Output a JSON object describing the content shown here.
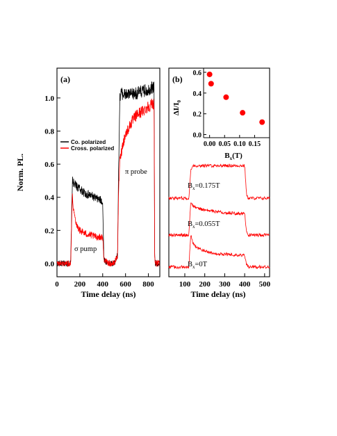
{
  "chart_data": [
    {
      "type": "line",
      "panel_label": "(a)",
      "xlabel": "Time delay (ns)",
      "ylabel": "Norm. PL.",
      "xlim": [
        0,
        900
      ],
      "ylim": [
        -0.08,
        1.18
      ],
      "x_ticks": [
        0,
        200,
        400,
        600,
        800
      ],
      "y_ticks": [
        0.0,
        0.2,
        0.4,
        0.6,
        0.8,
        1.0
      ],
      "y_tick_labels": [
        "0.0",
        "0.2",
        "0.4",
        "0.6",
        "0.8",
        "1.0"
      ],
      "grid": false,
      "legend_position": "middle-left",
      "annotations": [
        {
          "text": "σ  pump",
          "x": 165,
          "y": 0.055
        },
        {
          "text": "π  probe",
          "x": 685,
          "y": 0.555
        }
      ],
      "series": [
        {
          "name": "Co. polarized",
          "color": "#000000",
          "x": [
            0,
            120,
            130,
            135,
            150,
            200,
            250,
            300,
            350,
            390,
            400,
            410,
            430,
            460,
            500,
            530,
            540,
            550,
            560,
            600,
            650,
            700,
            750,
            800,
            850,
            855,
            860,
            900
          ],
          "y": [
            0.0,
            0.0,
            0.35,
            0.5,
            0.48,
            0.45,
            0.42,
            0.41,
            0.39,
            0.38,
            0.37,
            0.03,
            0.01,
            0.0,
            0.0,
            0.05,
            0.6,
            1.0,
            1.03,
            1.02,
            1.02,
            1.03,
            1.04,
            1.05,
            1.07,
            0.05,
            0.0,
            0.0
          ]
        },
        {
          "name": "Cross. polarized",
          "color": "#ff0000",
          "x": [
            0,
            120,
            130,
            135,
            150,
            175,
            200,
            250,
            300,
            350,
            400,
            410,
            430,
            460,
            500,
            530,
            540,
            550,
            575,
            600,
            650,
            700,
            750,
            800,
            850,
            855,
            860,
            900
          ],
          "y": [
            0.0,
            0.0,
            0.3,
            0.4,
            0.3,
            0.23,
            0.2,
            0.18,
            0.17,
            0.16,
            0.16,
            0.03,
            0.01,
            0.0,
            0.0,
            0.05,
            0.45,
            0.62,
            0.72,
            0.78,
            0.85,
            0.9,
            0.92,
            0.95,
            0.97,
            0.05,
            0.0,
            0.0
          ]
        }
      ]
    },
    {
      "type": "line",
      "panel_label": "(b)",
      "xlabel": "Time delay (ns)",
      "ylabel": "",
      "xlim": [
        20,
        525
      ],
      "x_ticks": [
        100,
        200,
        300,
        400,
        500
      ],
      "grid": false,
      "series": [
        {
          "name": "",
          "label": "Bx=0.175T",
          "label_sub": "x",
          "label_main": "B",
          "label_rest": "=0.175T",
          "color": "#ff0000",
          "x": [
            20,
            120,
            130,
            140,
            200,
            300,
            400,
            410,
            420,
            525
          ],
          "y": [
            0.0,
            0.0,
            0.6,
            0.72,
            0.72,
            0.72,
            0.72,
            0.05,
            0.0,
            0.0
          ]
        },
        {
          "name": "",
          "label": "Bx=0.055T",
          "label_main": "B",
          "label_sub": "x",
          "label_rest": "=0.055T",
          "color": "#ff0000",
          "x": [
            20,
            120,
            130,
            140,
            160,
            200,
            300,
            400,
            410,
            420,
            525
          ],
          "y": [
            0.0,
            0.0,
            0.72,
            0.66,
            0.6,
            0.55,
            0.5,
            0.47,
            0.05,
            0.0,
            0.0
          ]
        },
        {
          "name": "",
          "label": "Bx=0T",
          "label_main": "B",
          "label_sub": "x",
          "label_rest": "=0T",
          "color": "#ff0000",
          "x": [
            20,
            120,
            130,
            140,
            160,
            200,
            250,
            300,
            400,
            410,
            420,
            525
          ],
          "y": [
            0.0,
            0.0,
            0.72,
            0.55,
            0.42,
            0.35,
            0.3,
            0.28,
            0.26,
            0.05,
            0.0,
            0.0
          ]
        }
      ]
    },
    {
      "type": "scatter",
      "panel_label": "",
      "inset": true,
      "xlabel_main": "B",
      "xlabel_sub": "x",
      "xlabel_rest": "(T)",
      "ylabel_main": "ΔI/I",
      "ylabel_sub": "0",
      "xlim": [
        -0.02,
        0.2
      ],
      "ylim": [
        -0.03,
        0.64
      ],
      "x_ticks": [
        0.0,
        0.05,
        0.1,
        0.15
      ],
      "x_tick_labels": [
        "0.00",
        "0.05",
        "0.10",
        "0.15"
      ],
      "y_ticks": [
        0.0,
        0.2,
        0.4,
        0.6
      ],
      "y_tick_labels": [
        "0.0",
        "0.2",
        "0.4",
        "0.6"
      ],
      "grid": false,
      "series": [
        {
          "name": "",
          "color": "#ff0000",
          "x": [
            0.0,
            0.005,
            0.055,
            0.11,
            0.175
          ],
          "y": [
            0.58,
            0.49,
            0.36,
            0.21,
            0.12
          ]
        }
      ]
    }
  ]
}
